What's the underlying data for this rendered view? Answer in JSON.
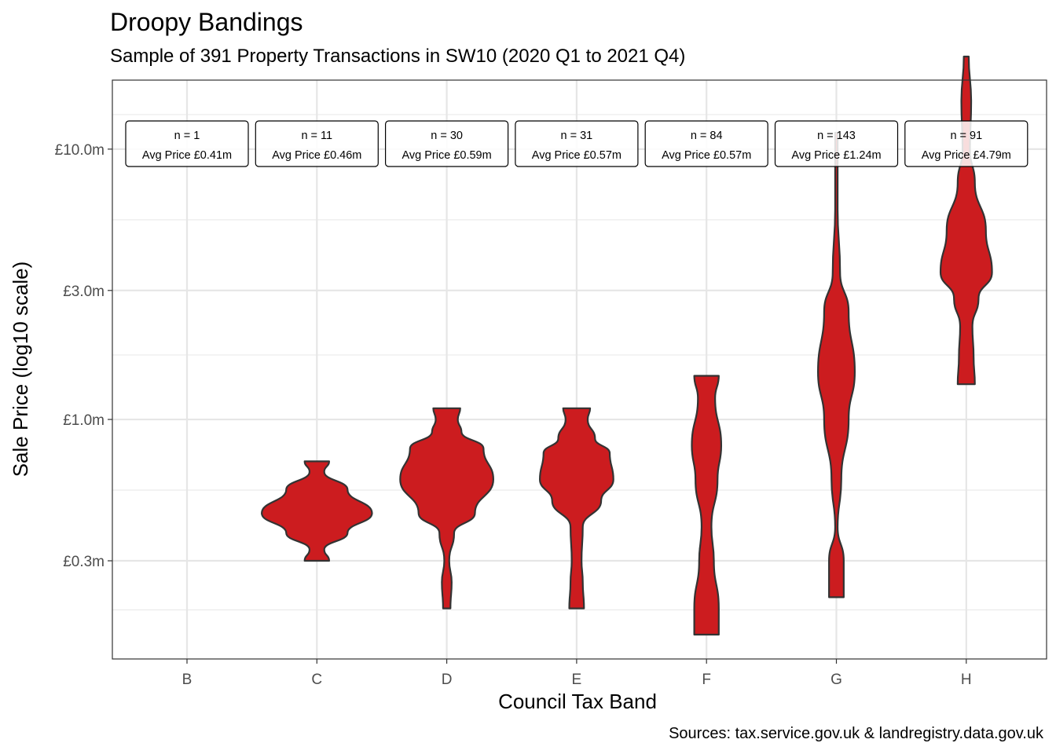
{
  "chart_data": {
    "type": "violin",
    "title": "Droopy Bandings",
    "subtitle": "Sample of 391 Property Transactions in SW10 (2020 Q1 to 2021 Q4)",
    "caption": "Sources: tax.service.gov.uk & landregistry.data.gov.uk",
    "xlabel": "Council Tax Band",
    "ylabel": "Sale Price (log10 scale)",
    "y_scale": "log10",
    "ylim": [
      0.13,
      18
    ],
    "y_ticks": [
      {
        "value": 10.0,
        "label": "£10.0m"
      },
      {
        "value": 3.0,
        "label": "£3.0m"
      },
      {
        "value": 1.0,
        "label": "£1.0m"
      },
      {
        "value": 0.3,
        "label": "£0.3m"
      }
    ],
    "categories": [
      "B",
      "C",
      "D",
      "E",
      "F",
      "G",
      "H"
    ],
    "fill_color": "#cc1c1f",
    "outline_color": "#333333",
    "grid": true,
    "annotations": [
      {
        "band": "B",
        "n": "n = 1",
        "avg": "Avg Price £0.41m"
      },
      {
        "band": "C",
        "n": "n = 11",
        "avg": "Avg Price £0.46m"
      },
      {
        "band": "D",
        "n": "n = 30",
        "avg": "Avg Price £0.59m"
      },
      {
        "band": "E",
        "n": "n = 31",
        "avg": "Avg Price £0.57m"
      },
      {
        "band": "F",
        "n": "n = 84",
        "avg": "Avg Price £0.57m"
      },
      {
        "band": "G",
        "n": "n = 143",
        "avg": "Avg Price £1.24m"
      },
      {
        "band": "H",
        "n": "n = 91",
        "avg": "Avg Price £4.79m"
      }
    ],
    "violins": [
      {
        "band": "B",
        "profile": []
      },
      {
        "band": "C",
        "profile": [
          [
            0.7,
            0.1
          ],
          [
            0.64,
            0.06
          ],
          [
            0.55,
            0.25
          ],
          [
            0.45,
            0.45
          ],
          [
            0.38,
            0.25
          ],
          [
            0.33,
            0.06
          ],
          [
            0.3,
            0.1
          ]
        ]
      },
      {
        "band": "D",
        "profile": [
          [
            1.1,
            0.11
          ],
          [
            1.0,
            0.09
          ],
          [
            0.9,
            0.12
          ],
          [
            0.78,
            0.3
          ],
          [
            0.6,
            0.38
          ],
          [
            0.45,
            0.23
          ],
          [
            0.38,
            0.06
          ],
          [
            0.3,
            0.02
          ],
          [
            0.25,
            0.04
          ],
          [
            0.2,
            0.03
          ]
        ]
      },
      {
        "band": "E",
        "profile": [
          [
            1.1,
            0.11
          ],
          [
            1.0,
            0.09
          ],
          [
            0.85,
            0.15
          ],
          [
            0.75,
            0.27
          ],
          [
            0.6,
            0.3
          ],
          [
            0.5,
            0.2
          ],
          [
            0.4,
            0.05
          ],
          [
            0.3,
            0.04
          ],
          [
            0.25,
            0.05
          ],
          [
            0.2,
            0.06
          ]
        ]
      },
      {
        "band": "F",
        "profile": [
          [
            1.45,
            0.1
          ],
          [
            1.2,
            0.07
          ],
          [
            0.8,
            0.12
          ],
          [
            0.6,
            0.09
          ],
          [
            0.4,
            0.04
          ],
          [
            0.3,
            0.06
          ],
          [
            0.2,
            0.1
          ],
          [
            0.18,
            0.1
          ],
          [
            0.16,
            0.1
          ]
        ]
      },
      {
        "band": "G",
        "profile": [
          [
            11.5,
            0.01
          ],
          [
            6.0,
            0.01
          ],
          [
            3.5,
            0.03
          ],
          [
            2.5,
            0.1
          ],
          [
            1.5,
            0.15
          ],
          [
            1.0,
            0.1
          ],
          [
            0.6,
            0.04
          ],
          [
            0.4,
            0.01
          ],
          [
            0.3,
            0.06
          ],
          [
            0.22,
            0.06
          ]
        ]
      },
      {
        "band": "H",
        "profile": [
          [
            22.0,
            0.02
          ],
          [
            15.0,
            0.04
          ],
          [
            10.0,
            0.03
          ],
          [
            7.5,
            0.07
          ],
          [
            5.0,
            0.16
          ],
          [
            3.5,
            0.21
          ],
          [
            2.8,
            0.1
          ],
          [
            2.2,
            0.05
          ],
          [
            1.7,
            0.06
          ],
          [
            1.35,
            0.07
          ]
        ]
      }
    ]
  }
}
